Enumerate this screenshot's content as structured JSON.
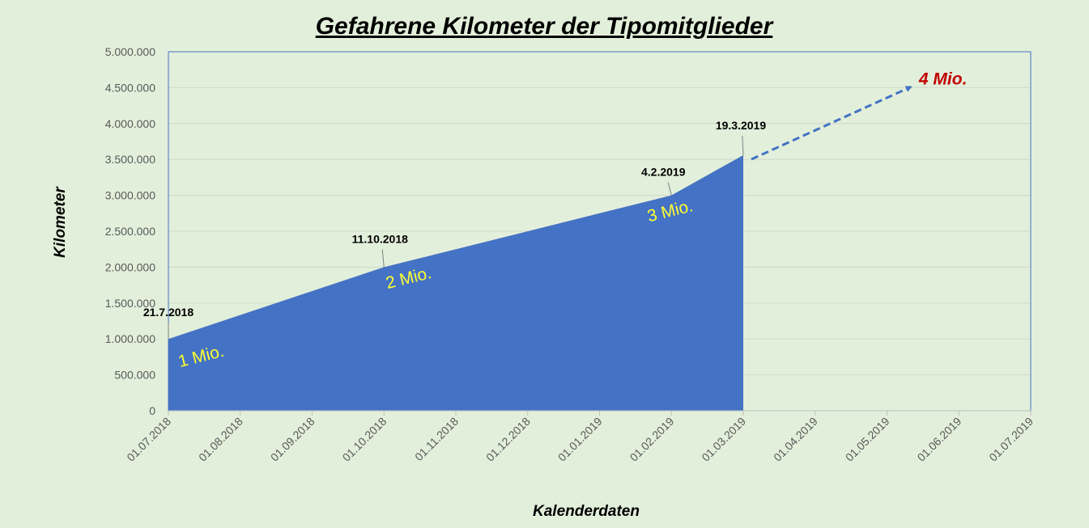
{
  "chart_data": {
    "type": "area",
    "title": "Gefahrene Kilometer der Tipomitglieder",
    "xlabel": "Kalenderdaten",
    "ylabel": "Kilometer",
    "x_ticks": [
      "01.07.2018",
      "01.08.2018",
      "01.09.2018",
      "01.10.2018",
      "01.11.2018",
      "01.12.2018",
      "01.01.2019",
      "01.02.2019",
      "01.03.2019",
      "01.04.2019",
      "01.05.2019",
      "01.06.2019",
      "01.07.2019"
    ],
    "y_ticks": [
      "0",
      "500.000",
      "1.000.000",
      "1.500.000",
      "2.000.000",
      "2.500.000",
      "3.000.000",
      "3.500.000",
      "4.000.000",
      "4.500.000",
      "5.000.000"
    ],
    "ylim": [
      0,
      5000000
    ],
    "xlim": [
      "01.07.2018",
      "01.07.2019"
    ],
    "grid": "horizontal",
    "fill_color": "#4472c4",
    "points": [
      {
        "x": "01.07.2018",
        "y": 1000000,
        "label": "21.7.2018",
        "milestone": "1 Mio."
      },
      {
        "x": "01.10.2018",
        "y": 2000000,
        "label": "11.10.2018",
        "milestone": "2 Mio."
      },
      {
        "x": "01.02.2019",
        "y": 3000000,
        "label": "4.2.2019",
        "milestone": "3 Mio."
      },
      {
        "x": "01.03.2019",
        "y": 3560000,
        "label": "19.3.2019",
        "milestone": ""
      }
    ],
    "forecast_arrow": {
      "from": {
        "x": "01.03.2019",
        "y": 3570000
      },
      "to": {
        "x": "15.05.2019",
        "y": 4600000
      },
      "label": "4 Mio.",
      "label_color": "#c00000",
      "arrow_color": "#4472c4"
    },
    "milestone_color": "#ffff33"
  }
}
